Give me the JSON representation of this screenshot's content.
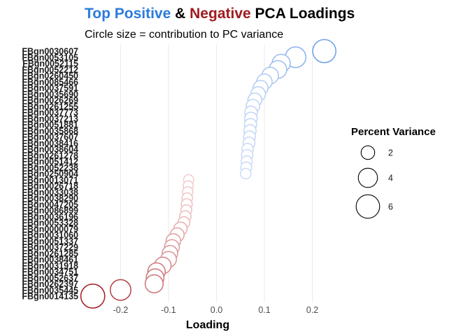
{
  "chart_data": {
    "type": "scatter",
    "title_parts": [
      "Top Positive",
      " & ",
      "Negative",
      " PCA Loadings"
    ],
    "title_colors": [
      "#2b7bdc",
      "#000000",
      "#a11a1f",
      "#000000"
    ],
    "subtitle": "Circle size = contribution to PC variance",
    "xlabel": "Loading",
    "ylabel": "",
    "xlim": [
      -0.275,
      0.24
    ],
    "x_ticks": [
      -0.2,
      -0.1,
      0.0,
      0.1,
      0.2
    ],
    "x_tick_labels": [
      "-0.2",
      "-0.1",
      "0.0",
      "0.1",
      "0.2"
    ],
    "grid": "vertical major",
    "legend": {
      "title": "Percent Variance",
      "position": "right",
      "sizes": [
        2,
        4,
        6
      ],
      "labels": [
        "2",
        "4",
        "6"
      ]
    },
    "colors": {
      "positive_light": "#cddcf7",
      "positive_dark": "#6a9fe9",
      "negative_light": "#f6cdcd",
      "negative_dark": "#a11a1f"
    },
    "genes": [
      "FBgn0030607",
      "FBgn0053105",
      "FBgn0052115",
      "FBgn0052212",
      "FBgn0260450",
      "FBgn0085466",
      "FBgn0037591",
      "FBgn0035690",
      "FBgn0026269",
      "FBgn0261255",
      "FBgn0037773",
      "FBgn0037213",
      "FBgn0051881",
      "FBgn0035868",
      "FBgn0037607",
      "FBgn0038416",
      "FBgn0038604",
      "FBgn0261278",
      "FBgn0051412",
      "FBgn0052238",
      "FBgn0250904",
      "FBgn0013071",
      "FBgn0026718",
      "FBgn0033038",
      "FBgn0038290",
      "FBgn0047205",
      "FBgn0086899",
      "FBgn0036196",
      "FBgn0053328",
      "FBgn0000079",
      "FBgn0031060",
      "FBgn0051337",
      "FBgn0037229",
      "FBgn0261285",
      "FBgn0038461",
      "FBgn0031918",
      "FBgn0034751",
      "FBgn0052637",
      "FBgn0262397",
      "FBgn0035445",
      "FBgn0014135"
    ],
    "loadings": [
      0.225,
      0.165,
      0.135,
      0.128,
      0.112,
      0.1,
      0.092,
      0.087,
      0.08,
      0.076,
      0.072,
      0.072,
      0.071,
      0.07,
      0.069,
      0.068,
      0.065,
      0.064,
      0.063,
      0.062,
      0.061,
      -0.058,
      -0.059,
      -0.06,
      -0.061,
      -0.062,
      -0.063,
      -0.065,
      -0.068,
      -0.075,
      -0.082,
      -0.09,
      -0.093,
      -0.097,
      -0.1,
      -0.112,
      -0.125,
      -0.128,
      -0.13,
      -0.2,
      -0.258
    ],
    "percent_variance": [
      5.8,
      4.6,
      3.6,
      3.4,
      3.0,
      2.6,
      2.4,
      2.3,
      2.1,
      2.0,
      1.7,
      1.7,
      1.6,
      1.6,
      1.5,
      1.5,
      1.4,
      1.4,
      1.3,
      1.3,
      1.2,
      1.1,
      1.1,
      1.2,
      1.2,
      1.3,
      1.3,
      1.4,
      1.5,
      1.9,
      2.1,
      2.3,
      2.4,
      2.6,
      2.7,
      3.0,
      3.3,
      3.4,
      3.5,
      4.6,
      6.2
    ]
  }
}
